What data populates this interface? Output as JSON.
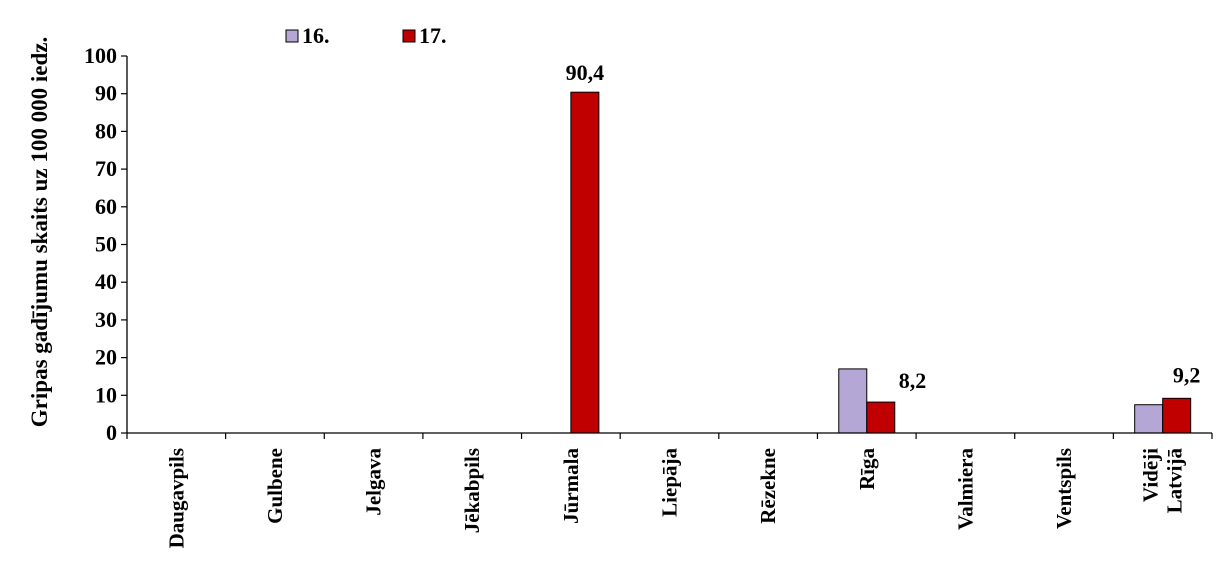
{
  "chart_data": {
    "type": "bar",
    "title": "",
    "xlabel": "",
    "ylabel": "Gripas gadījumu skaits uz 100 000 iedz.",
    "ylim": [
      0,
      100
    ],
    "yticks": [
      0,
      10,
      20,
      30,
      40,
      50,
      60,
      70,
      80,
      90,
      100
    ],
    "categories": [
      [
        "Daugavpils"
      ],
      [
        "Gulbene"
      ],
      [
        "Jelgava"
      ],
      [
        "Jēkabpils"
      ],
      [
        "Jūrmala"
      ],
      [
        "Liepāja"
      ],
      [
        "Rēzekne"
      ],
      [
        "Rīga"
      ],
      [
        "Valmiera"
      ],
      [
        "Ventspils"
      ],
      [
        "Vidēji",
        "Latvijā"
      ]
    ],
    "series": [
      {
        "name": "16.",
        "color": "#B4A7D6",
        "values": [
          0,
          0,
          0,
          0,
          0,
          0,
          0,
          17,
          0,
          0,
          7.5
        ],
        "labels": [
          null,
          null,
          null,
          null,
          null,
          null,
          null,
          null,
          null,
          null,
          null
        ]
      },
      {
        "name": "17.",
        "color": "#C00000",
        "values": [
          0,
          0,
          0,
          0,
          90.4,
          0,
          0,
          8.2,
          0,
          0,
          9.2
        ],
        "labels": [
          null,
          null,
          null,
          null,
          "90,4",
          null,
          null,
          "8,2",
          null,
          null,
          "9,2"
        ]
      }
    ],
    "legend_position": "top-left",
    "grid": false
  }
}
